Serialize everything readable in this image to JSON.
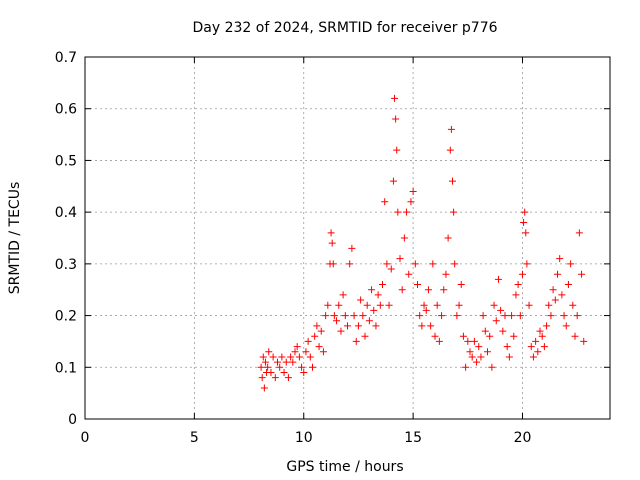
{
  "chart_data": {
    "type": "scatter",
    "title": "Day 232 of 2024, SRMTID for receiver p776",
    "xlabel": "GPS time / hours",
    "ylabel": "SRMTID / TECUs",
    "xlim": [
      0,
      24
    ],
    "ylim": [
      0,
      0.7
    ],
    "xticks": [
      0,
      5,
      10,
      15,
      20
    ],
    "xtick_labels": [
      "0",
      "5",
      "10",
      "15",
      "20"
    ],
    "yticks": [
      0,
      0.1,
      0.2,
      0.3,
      0.4,
      0.5,
      0.6,
      0.7
    ],
    "ytick_labels": [
      "0",
      "0.1",
      "0.2",
      "0.3",
      "0.4",
      "0.5",
      "0.6",
      "0.7"
    ],
    "grid": true,
    "marker": "+",
    "series": [
      {
        "name": "SRMTID",
        "color": "#ff0000",
        "x": [
          8.05,
          8.1,
          8.15,
          8.2,
          8.25,
          8.3,
          8.35,
          8.4,
          8.5,
          8.6,
          8.7,
          8.8,
          8.9,
          9.0,
          9.1,
          9.2,
          9.3,
          9.4,
          9.5,
          9.6,
          9.7,
          9.8,
          9.9,
          10.0,
          10.1,
          10.2,
          10.3,
          10.4,
          10.5,
          10.6,
          10.7,
          10.8,
          10.9,
          11.0,
          11.1,
          11.2,
          11.25,
          11.3,
          11.35,
          11.4,
          11.5,
          11.6,
          11.7,
          11.8,
          11.9,
          12.0,
          12.1,
          12.2,
          12.3,
          12.4,
          12.5,
          12.6,
          12.7,
          12.8,
          12.9,
          13.0,
          13.1,
          13.2,
          13.3,
          13.4,
          13.5,
          13.6,
          13.7,
          13.8,
          13.9,
          14.0,
          14.1,
          14.15,
          14.2,
          14.25,
          14.3,
          14.4,
          14.5,
          14.6,
          14.7,
          14.8,
          14.9,
          15.0,
          15.1,
          15.2,
          15.3,
          15.4,
          15.5,
          15.6,
          15.7,
          15.8,
          15.9,
          16.0,
          16.1,
          16.2,
          16.3,
          16.4,
          16.5,
          16.6,
          16.7,
          16.75,
          16.8,
          16.85,
          16.9,
          17.0,
          17.1,
          17.2,
          17.3,
          17.4,
          17.5,
          17.6,
          17.7,
          17.8,
          17.9,
          18.0,
          18.1,
          18.2,
          18.3,
          18.4,
          18.5,
          18.6,
          18.7,
          18.8,
          18.9,
          19.0,
          19.1,
          19.2,
          19.3,
          19.4,
          19.5,
          19.6,
          19.7,
          19.8,
          19.9,
          20.0,
          20.05,
          20.1,
          20.15,
          20.2,
          20.3,
          20.4,
          20.5,
          20.6,
          20.7,
          20.8,
          20.9,
          21.0,
          21.1,
          21.2,
          21.3,
          21.4,
          21.5,
          21.6,
          21.7,
          21.8,
          21.9,
          22.0,
          22.1,
          22.2,
          22.3,
          22.4,
          22.5,
          22.6,
          22.7,
          22.8
        ],
        "y": [
          0.1,
          0.08,
          0.12,
          0.06,
          0.11,
          0.09,
          0.1,
          0.13,
          0.09,
          0.12,
          0.08,
          0.11,
          0.1,
          0.12,
          0.09,
          0.11,
          0.08,
          0.12,
          0.11,
          0.13,
          0.14,
          0.12,
          0.1,
          0.09,
          0.13,
          0.15,
          0.12,
          0.1,
          0.16,
          0.18,
          0.14,
          0.17,
          0.13,
          0.2,
          0.22,
          0.3,
          0.36,
          0.34,
          0.3,
          0.2,
          0.19,
          0.22,
          0.17,
          0.24,
          0.2,
          0.18,
          0.3,
          0.33,
          0.2,
          0.15,
          0.18,
          0.23,
          0.2,
          0.16,
          0.22,
          0.19,
          0.25,
          0.21,
          0.18,
          0.24,
          0.22,
          0.26,
          0.42,
          0.3,
          0.22,
          0.29,
          0.46,
          0.62,
          0.58,
          0.52,
          0.4,
          0.31,
          0.25,
          0.35,
          0.4,
          0.28,
          0.42,
          0.44,
          0.3,
          0.26,
          0.2,
          0.18,
          0.22,
          0.21,
          0.25,
          0.18,
          0.3,
          0.16,
          0.22,
          0.15,
          0.2,
          0.25,
          0.28,
          0.35,
          0.52,
          0.56,
          0.46,
          0.4,
          0.3,
          0.2,
          0.22,
          0.26,
          0.16,
          0.1,
          0.15,
          0.13,
          0.12,
          0.15,
          0.11,
          0.14,
          0.12,
          0.2,
          0.17,
          0.13,
          0.16,
          0.1,
          0.22,
          0.19,
          0.27,
          0.21,
          0.17,
          0.2,
          0.14,
          0.12,
          0.2,
          0.16,
          0.24,
          0.26,
          0.2,
          0.28,
          0.38,
          0.4,
          0.36,
          0.3,
          0.22,
          0.14,
          0.12,
          0.15,
          0.13,
          0.17,
          0.16,
          0.14,
          0.18,
          0.22,
          0.2,
          0.25,
          0.23,
          0.28,
          0.31,
          0.24,
          0.2,
          0.18,
          0.26,
          0.3,
          0.22,
          0.16,
          0.2,
          0.36,
          0.28,
          0.15
        ]
      }
    ]
  }
}
